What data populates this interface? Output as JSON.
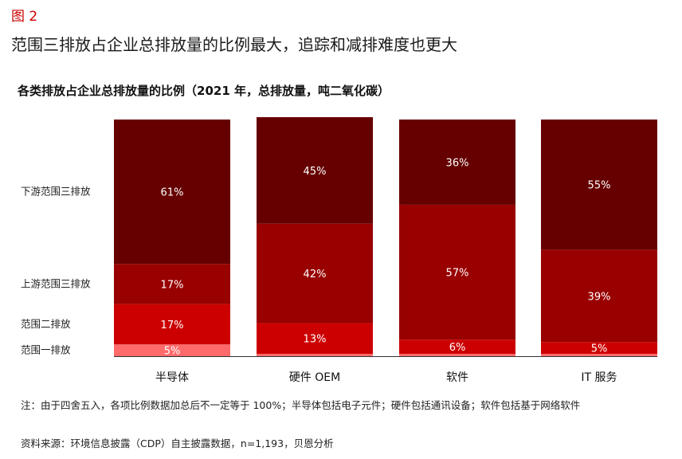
{
  "figure_label": "图 2",
  "main_title": "范围三排放占企业总排放量的比例最大，追踪和减排难度也更大",
  "note": "注：由于四舍五入，各项比例数据加总后不一定等于 100%；半导体包括电子元件；硬件包括通讯设备；软件包括基于网络软件",
  "source": "资料来源：环境信息披露（CDP）自主披露数据，n=1,193，贝恩分析",
  "chart_data": {
    "type": "bar",
    "stacked": true,
    "percent": true,
    "title": "各类排放占企业总排放量的比例（2021 年，总排放量，吨二氧化碳）",
    "categories": [
      "半导体",
      "硬件 OEM",
      "软件",
      "IT 服务"
    ],
    "series": [
      {
        "name": "范围一排放",
        "values": [
          5,
          1,
          1,
          1
        ],
        "labels": [
          "5%",
          "",
          "",
          ""
        ],
        "color": "#ff6b6b"
      },
      {
        "name": "范围二排放",
        "values": [
          17,
          13,
          6,
          5
        ],
        "labels": [
          "17%",
          "13%",
          "6%",
          "5%"
        ],
        "color": "#cc0000"
      },
      {
        "name": "上游范围三排放",
        "values": [
          17,
          42,
          57,
          39
        ],
        "labels": [
          "17%",
          "42%",
          "57%",
          "39%"
        ],
        "color": "#990000"
      },
      {
        "name": "下游范围三排放",
        "values": [
          61,
          45,
          36,
          55
        ],
        "labels": [
          "61%",
          "45%",
          "36%",
          "55%"
        ],
        "color": "#660000"
      }
    ],
    "ylim": [
      0,
      100
    ],
    "grid": false,
    "legend": "left"
  }
}
